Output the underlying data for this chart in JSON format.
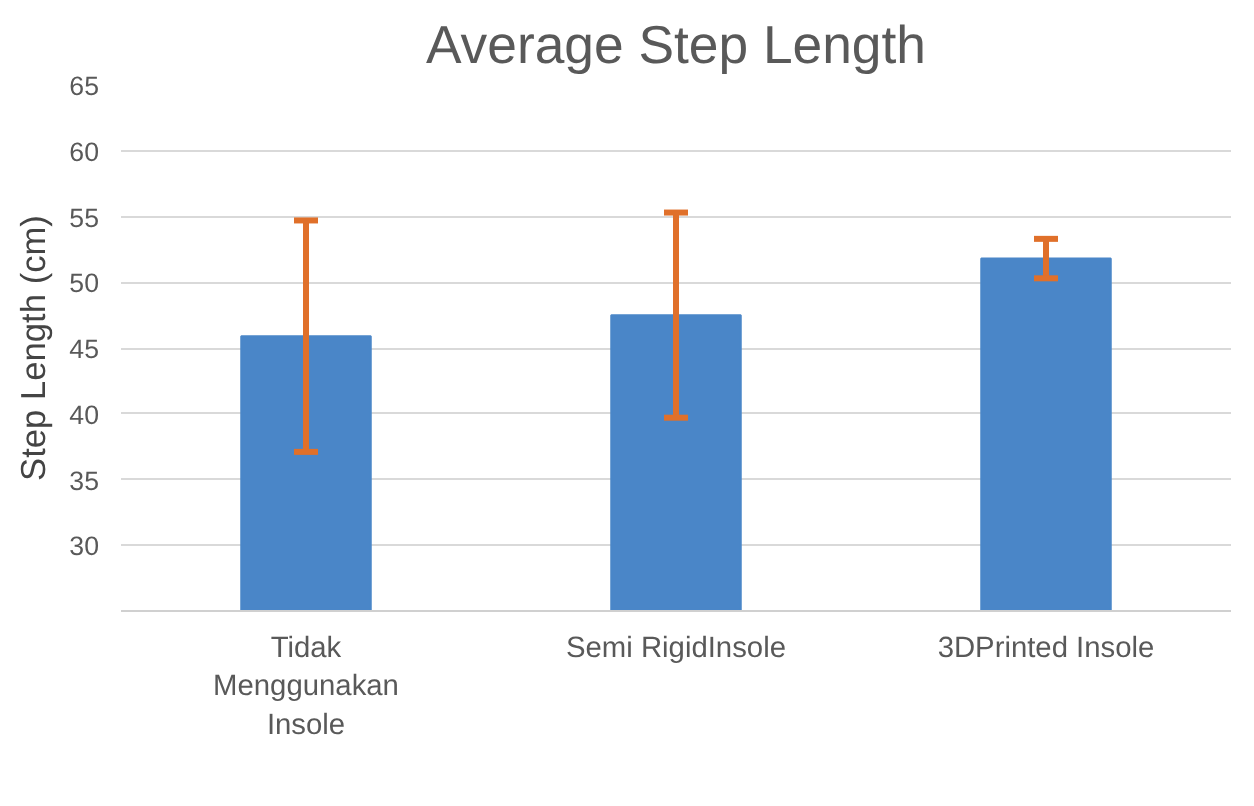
{
  "chart_data": {
    "type": "bar",
    "title": "Average Step Length",
    "ylabel": "Step Length (cm)",
    "categories": [
      "Tidak Menggunakan Insole",
      "Semi RigidInsole",
      "3DPrinted Insole"
    ],
    "values": [
      45.9,
      47.5,
      51.8
    ],
    "errors": [
      8.8,
      7.8,
      1.5
    ],
    "color": "#4a86c8",
    "ylim": [
      25,
      65
    ],
    "yticks": [
      {
        "value": 25,
        "label": null
      },
      30,
      35,
      40,
      45,
      50,
      55,
      60,
      65
    ],
    "grid": "y"
  }
}
